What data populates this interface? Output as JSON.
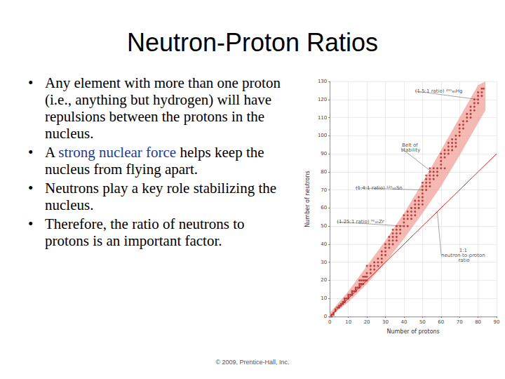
{
  "slide": {
    "title": "Neutron-Proton Ratios",
    "bullets": [
      {
        "text": "Any element with more than one proton (i.e., anything but hydrogen) will have repulsions between the protons in the nucleus."
      },
      {
        "text": "A strong nuclear force helps keep the nucleus from flying apart.",
        "highlight": "strong nuclear force"
      },
      {
        "text": "Neutrons play a key role stabilizing the nucleus."
      },
      {
        "text": "Therefore, the ratio of neutrons to protons is an important factor."
      }
    ],
    "footer": "© 2009, Prentice-Hall, Inc."
  },
  "chart_data": {
    "type": "scatter",
    "x_label": "Number of protons",
    "y_label": "Number of neutrons",
    "xlim": [
      0,
      90
    ],
    "xticks": [
      0,
      10,
      20,
      30,
      40,
      50,
      60,
      70,
      80,
      90
    ],
    "ylim": [
      0,
      130
    ],
    "yticks": [
      0,
      10,
      20,
      30,
      40,
      50,
      60,
      70,
      80,
      90,
      100,
      110,
      120,
      130
    ],
    "grid": true,
    "series": [
      {
        "type": "band",
        "color": "#f2a29a",
        "x": [
          0,
          10,
          20,
          30,
          40,
          50,
          60,
          70,
          80,
          84
        ],
        "lower": [
          0,
          8,
          18,
          30,
          43,
          57,
          72,
          89,
          107,
          114
        ],
        "upper": [
          2,
          14,
          28,
          42,
          57,
          74,
          92,
          110,
          128,
          130
        ]
      },
      {
        "type": "scatter",
        "color": "#b22222",
        "x": [
          1,
          1,
          2,
          2,
          3,
          3,
          4,
          5,
          5,
          6,
          6,
          7,
          7,
          8,
          8,
          8,
          9,
          10,
          10,
          10,
          11,
          12,
          12,
          12,
          13,
          14,
          14,
          14,
          15,
          16,
          16,
          16,
          16,
          17,
          17,
          18,
          18,
          18,
          19,
          19,
          20,
          20,
          20,
          20,
          22,
          22,
          22,
          24,
          24,
          24,
          26,
          26,
          26,
          28,
          28,
          28,
          28,
          30,
          30,
          30,
          30,
          32,
          32,
          32,
          32,
          34,
          34,
          34,
          34,
          34,
          36,
          36,
          36,
          36,
          36,
          38,
          38,
          38,
          40,
          40,
          40,
          40,
          42,
          42,
          42,
          42,
          44,
          44,
          44,
          44,
          46,
          46,
          46,
          46,
          46,
          48,
          48,
          48,
          48,
          50,
          50,
          50,
          50,
          50,
          50,
          50,
          52,
          52,
          52,
          52,
          52,
          54,
          54,
          54,
          54,
          54,
          54,
          56,
          56,
          56,
          56,
          58,
          58,
          58,
          60,
          60,
          60,
          60,
          60,
          62,
          62,
          62,
          62,
          64,
          64,
          64,
          64,
          66,
          66,
          66,
          66,
          68,
          68,
          68,
          68,
          70,
          70,
          70,
          70,
          72,
          72,
          72,
          74,
          74,
          74,
          76,
          76,
          76,
          76,
          78,
          78,
          78,
          78,
          80,
          80,
          80,
          80,
          82,
          82,
          82,
          83
        ],
        "values": [
          0,
          1,
          1,
          2,
          3,
          4,
          5,
          5,
          6,
          6,
          7,
          7,
          8,
          8,
          9,
          10,
          10,
          10,
          11,
          12,
          12,
          12,
          13,
          14,
          14,
          14,
          15,
          16,
          16,
          16,
          17,
          18,
          20,
          18,
          20,
          18,
          20,
          22,
          20,
          22,
          20,
          22,
          24,
          28,
          24,
          26,
          28,
          26,
          28,
          30,
          28,
          30,
          32,
          30,
          32,
          34,
          36,
          34,
          36,
          38,
          40,
          38,
          40,
          42,
          44,
          40,
          42,
          44,
          46,
          48,
          42,
          44,
          46,
          48,
          50,
          46,
          48,
          50,
          50,
          52,
          54,
          56,
          50,
          54,
          56,
          58,
          54,
          56,
          58,
          60,
          56,
          58,
          60,
          62,
          64,
          60,
          62,
          64,
          66,
          62,
          64,
          66,
          68,
          70,
          72,
          74,
          70,
          72,
          74,
          76,
          78,
          72,
          74,
          76,
          78,
          80,
          82,
          76,
          78,
          80,
          82,
          78,
          80,
          82,
          82,
          84,
          86,
          88,
          90,
          82,
          88,
          90,
          92,
          90,
          92,
          94,
          96,
          92,
          94,
          96,
          98,
          94,
          96,
          98,
          100,
          100,
          102,
          104,
          106,
          104,
          106,
          108,
          108,
          110,
          112,
          110,
          112,
          114,
          116,
          114,
          116,
          118,
          120,
          118,
          120,
          122,
          124,
          122,
          124,
          126,
          126
        ]
      },
      {
        "type": "line",
        "color": "#e02020",
        "x": [
          0,
          90
        ],
        "values": [
          0,
          90
        ]
      }
    ],
    "annotations": [
      {
        "text": "(1.5:1 ratio) ²⁰⁰₈₀Hg",
        "point": [
          80,
          120
        ]
      },
      {
        "text": "Belt of stability",
        "point": [
          55,
          80
        ]
      },
      {
        "text": "(1.4:1 ratio) ¹²⁰₅₀Sn",
        "point": [
          50,
          70
        ]
      },
      {
        "text": "(1.25:1 ratio) ⁹⁰₄₀Zr",
        "point": [
          40,
          50
        ]
      },
      {
        "text": "1:1 neutron-to-proton ratio",
        "point": [
          58,
          58
        ]
      }
    ]
  }
}
